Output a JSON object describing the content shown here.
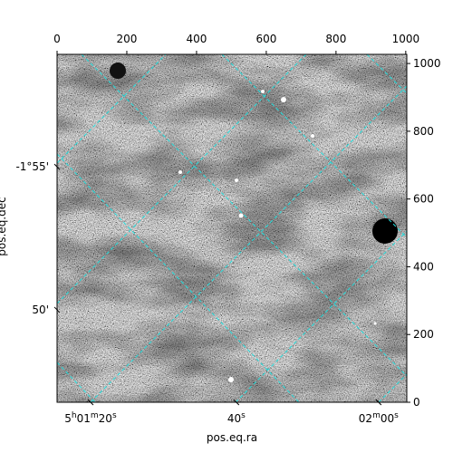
{
  "chart_data": {
    "type": "image",
    "xlabel": "pos.eq.ra",
    "ylabel": "pos.eq.dec",
    "xlim": [
      0,
      1003
    ],
    "ylim": [
      0,
      1027
    ],
    "xticks": [
      0,
      200,
      400,
      600,
      800,
      1000
    ],
    "yticks": [
      0,
      200,
      400,
      600,
      800,
      1000
    ],
    "ra_ticks": [
      {
        "value": 96,
        "label": "5h01m20s"
      },
      {
        "value": 514,
        "label": "40s"
      },
      {
        "value": 922,
        "label": "02m00s"
      }
    ],
    "dec_ticks": [
      {
        "value": 695,
        "label": "-1°55'"
      },
      {
        "value": 273,
        "label": "50'"
      }
    ],
    "grid_color": "#22dddd"
  }
}
